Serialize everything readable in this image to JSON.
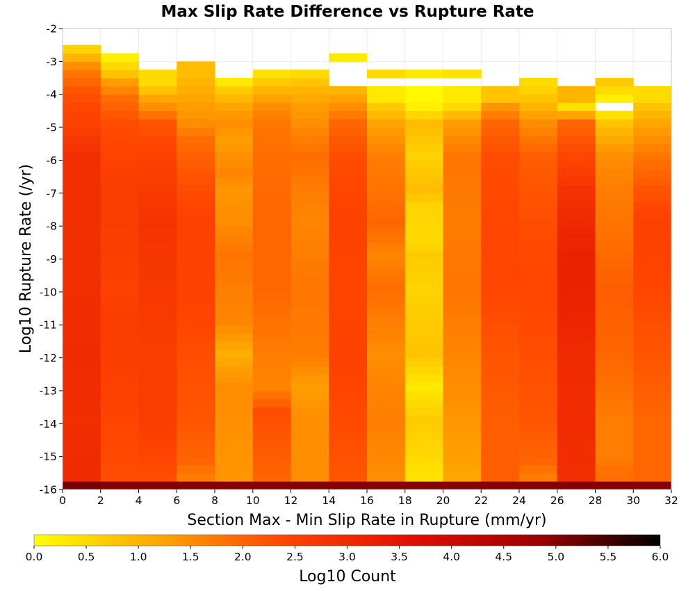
{
  "chart_data": {
    "type": "heatmap",
    "title": "Max Slip Rate Difference vs Rupture Rate",
    "xlabel": "Section Max - Min Slip Rate in Rupture (mm/yr)",
    "ylabel": "Log10 Rupture Rate (/yr)",
    "xlim": [
      0,
      32
    ],
    "ylim": [
      -16,
      -2
    ],
    "x_ticks": [
      "0",
      "2",
      "4",
      "6",
      "8",
      "10",
      "12",
      "14",
      "16",
      "18",
      "20",
      "22",
      "24",
      "26",
      "28",
      "30",
      "32"
    ],
    "y_ticks": [
      "-16",
      "-15",
      "-14",
      "-13",
      "-12",
      "-11",
      "-10",
      "-9",
      "-8",
      "-7",
      "-6",
      "-5",
      "-4",
      "-3",
      "-2"
    ],
    "x_bin_width": 2,
    "y_bin_height": 0.25,
    "grid": true,
    "colorbar": {
      "label": "Log10 Count",
      "range": [
        0.0,
        6.0
      ],
      "ticks": [
        "0.0",
        "0.5",
        "1.0",
        "1.5",
        "2.0",
        "2.5",
        "3.0",
        "3.5",
        "4.0",
        "4.5",
        "5.0",
        "5.5",
        "6.0"
      ],
      "stops": [
        "#ffff00",
        "#ffa500",
        "#ff4500",
        "#e01000",
        "#a00000",
        "#000000"
      ]
    },
    "columns": [
      {
        "x": [
          0,
          2
        ],
        "top": -2.75,
        "bins": [
          [
            -16.0,
            5.1
          ],
          [
            -15.75,
            3.0
          ],
          [
            -15.5,
            3.0
          ],
          [
            -14.0,
            2.9
          ],
          [
            -12.0,
            3.0
          ],
          [
            -10.0,
            2.9
          ],
          [
            -8.0,
            2.9
          ],
          [
            -6.0,
            2.9
          ],
          [
            -5.0,
            2.5
          ],
          [
            -4.5,
            2.4
          ],
          [
            -4.0,
            2.2
          ],
          [
            -3.5,
            1.8
          ],
          [
            -3.25,
            1.5
          ],
          [
            -3.0,
            1.0
          ],
          [
            -2.75,
            0.6
          ]
        ]
      },
      {
        "x": [
          2,
          4
        ],
        "top": -3.0,
        "bins": [
          [
            -16.0,
            5.0
          ],
          [
            -15.75,
            2.3
          ],
          [
            -13.0,
            2.5
          ],
          [
            -11.5,
            2.6
          ],
          [
            -10.0,
            2.5
          ],
          [
            -8.0,
            2.6
          ],
          [
            -7.0,
            2.6
          ],
          [
            -5.0,
            2.3
          ],
          [
            -4.25,
            1.9
          ],
          [
            -3.75,
            1.3
          ],
          [
            -3.5,
            0.8
          ],
          [
            -3.25,
            0.5
          ],
          [
            -3.0,
            0.2
          ]
        ]
      },
      {
        "x": [
          4,
          6
        ],
        "top": -3.5,
        "bins": [
          [
            -16.0,
            5.0
          ],
          [
            -15.75,
            2.3
          ],
          [
            -14.0,
            2.6
          ],
          [
            -12.0,
            2.6
          ],
          [
            -10.0,
            2.7
          ],
          [
            -8.0,
            2.8
          ],
          [
            -6.0,
            2.5
          ],
          [
            -5.0,
            2.2
          ],
          [
            -4.5,
            1.5
          ],
          [
            -4.25,
            1.2
          ],
          [
            -4.0,
            0.8
          ],
          [
            -3.75,
            0.5
          ]
        ]
      },
      {
        "x": [
          6,
          8
        ],
        "top": -3.25,
        "bins": [
          [
            -16.0,
            5.0
          ],
          [
            -15.75,
            1.7
          ],
          [
            -15.25,
            2.0
          ],
          [
            -14.0,
            2.2
          ],
          [
            -12.0,
            2.3
          ],
          [
            -10.0,
            2.5
          ],
          [
            -8.0,
            2.5
          ],
          [
            -6.5,
            2.2
          ],
          [
            -5.5,
            1.9
          ],
          [
            -5.0,
            1.5
          ],
          [
            -4.5,
            1.3
          ],
          [
            -4.0,
            1.1
          ],
          [
            -3.5,
            0.9
          ]
        ]
      },
      {
        "x": [
          8,
          10
        ],
        "top": -3.75,
        "bins": [
          [
            -16.0,
            5.0
          ],
          [
            -15.75,
            1.4
          ],
          [
            -13.0,
            1.5
          ],
          [
            -12.0,
            1.1
          ],
          [
            -11.0,
            1.6
          ],
          [
            -9.0,
            1.8
          ],
          [
            -8.0,
            1.5
          ],
          [
            -7.0,
            1.4
          ],
          [
            -6.5,
            1.6
          ],
          [
            -5.5,
            1.3
          ],
          [
            -5.0,
            1.5
          ],
          [
            -4.5,
            1.2
          ],
          [
            -4.0,
            0.7
          ],
          [
            -3.75,
            0.3
          ]
        ]
      },
      {
        "x": [
          10,
          12
        ],
        "top": -3.5,
        "bins": [
          [
            -16.0,
            5.0
          ],
          [
            -15.75,
            2.0
          ],
          [
            -13.75,
            2.3
          ],
          [
            -13.0,
            1.6
          ],
          [
            -12.0,
            1.7
          ],
          [
            -10.0,
            2.0
          ],
          [
            -8.0,
            2.0
          ],
          [
            -6.0,
            1.9
          ],
          [
            -5.0,
            1.8
          ],
          [
            -4.5,
            1.5
          ],
          [
            -4.0,
            1.0
          ],
          [
            -3.75,
            0.7
          ],
          [
            -3.5,
            0.4
          ]
        ]
      },
      {
        "x": [
          12,
          14
        ],
        "top": -3.5,
        "bins": [
          [
            -16.0,
            5.0
          ],
          [
            -15.75,
            1.5
          ],
          [
            -14.0,
            1.5
          ],
          [
            -13.0,
            1.3
          ],
          [
            -12.0,
            1.7
          ],
          [
            -10.0,
            1.8
          ],
          [
            -8.0,
            1.6
          ],
          [
            -7.0,
            1.7
          ],
          [
            -6.0,
            1.9
          ],
          [
            -5.0,
            1.5
          ],
          [
            -4.5,
            1.3
          ],
          [
            -4.0,
            1.0
          ],
          [
            -3.75,
            0.8
          ],
          [
            -3.5,
            0.5
          ]
        ]
      },
      {
        "x": [
          14,
          16
        ],
        "top": -4.0,
        "bins": [
          [
            -16.0,
            5.0
          ],
          [
            -15.75,
            2.2
          ],
          [
            -12.0,
            2.5
          ],
          [
            -10.0,
            2.4
          ],
          [
            -8.0,
            2.5
          ],
          [
            -6.0,
            2.3
          ],
          [
            -5.0,
            2.0
          ],
          [
            -4.5,
            1.5
          ],
          [
            -4.0,
            1.0
          ]
        ],
        "extra": [
          [
            -3.0,
            0.3
          ]
        ]
      },
      {
        "x": [
          16,
          18
        ],
        "top": -4.0,
        "bins": [
          [
            -16.0,
            5.0
          ],
          [
            -15.75,
            1.5
          ],
          [
            -14.0,
            1.7
          ],
          [
            -12.0,
            1.5
          ],
          [
            -10.0,
            1.9
          ],
          [
            -9.0,
            1.6
          ],
          [
            -8.0,
            2.0
          ],
          [
            -7.0,
            1.8
          ],
          [
            -6.0,
            1.7
          ],
          [
            -5.0,
            1.2
          ],
          [
            -4.5,
            0.7
          ],
          [
            -4.25,
            0.3
          ]
        ],
        "extra": [
          [
            -3.5,
            0.5
          ]
        ]
      },
      {
        "x": [
          18,
          20
        ],
        "top": -4.0,
        "bins": [
          [
            -16.0,
            5.0
          ],
          [
            -15.75,
            0.4
          ],
          [
            -14.0,
            0.7
          ],
          [
            -13.0,
            0.3
          ],
          [
            -12.0,
            0.8
          ],
          [
            -10.0,
            0.6
          ],
          [
            -9.0,
            0.7
          ],
          [
            -8.5,
            0.5
          ],
          [
            -7.5,
            0.6
          ],
          [
            -7.0,
            0.9
          ],
          [
            -6.0,
            0.6
          ],
          [
            -5.0,
            0.9
          ],
          [
            -4.5,
            0.2
          ],
          [
            -4.25,
            0.1
          ]
        ],
        "extra": [
          [
            -3.5,
            0.3
          ]
        ]
      },
      {
        "x": [
          20,
          22
        ],
        "top": -4.0,
        "bins": [
          [
            -16.0,
            5.0
          ],
          [
            -15.75,
            1.2
          ],
          [
            -14.0,
            1.4
          ],
          [
            -12.0,
            1.6
          ],
          [
            -10.0,
            1.8
          ],
          [
            -8.0,
            1.7
          ],
          [
            -6.0,
            1.8
          ],
          [
            -5.0,
            1.3
          ],
          [
            -4.5,
            0.5
          ],
          [
            -4.25,
            0.3
          ]
        ],
        "extra": [
          [
            -3.5,
            0.4
          ]
        ]
      },
      {
        "x": [
          22,
          24
        ],
        "top": -4.0,
        "bins": [
          [
            -16.0,
            5.0
          ],
          [
            -15.75,
            2.1
          ],
          [
            -14.0,
            2.1
          ],
          [
            -12.0,
            2.2
          ],
          [
            -10.0,
            2.4
          ],
          [
            -8.0,
            2.4
          ],
          [
            -6.0,
            2.3
          ],
          [
            -5.0,
            2.0
          ],
          [
            -4.5,
            1.4
          ],
          [
            -4.25,
            0.8
          ]
        ]
      },
      {
        "x": [
          24,
          26
        ],
        "top": -3.75,
        "bins": [
          [
            -16.0,
            5.0
          ],
          [
            -15.75,
            1.7
          ],
          [
            -15.25,
            2.0
          ],
          [
            -14.0,
            2.2
          ],
          [
            -12.0,
            2.3
          ],
          [
            -10.0,
            2.4
          ],
          [
            -8.0,
            2.3
          ],
          [
            -6.0,
            2.1
          ],
          [
            -5.0,
            1.5
          ],
          [
            -4.5,
            1.0
          ],
          [
            -4.0,
            0.6
          ],
          [
            -3.75,
            0.5
          ]
        ]
      },
      {
        "x": [
          26,
          28
        ],
        "top": -4.0,
        "bins": [
          [
            -16.0,
            5.0
          ],
          [
            -15.75,
            2.9
          ],
          [
            -12.0,
            3.0
          ],
          [
            -10.0,
            3.2
          ],
          [
            -9.0,
            3.2
          ],
          [
            -8.0,
            3.0
          ],
          [
            -7.0,
            2.8
          ],
          [
            -6.0,
            2.4
          ],
          [
            -5.0,
            2.0
          ],
          [
            -4.75,
            1.2
          ],
          [
            -4.5,
            0.4
          ],
          [
            -4.25,
            1.0
          ]
        ]
      },
      {
        "x": [
          28,
          30
        ],
        "top": -3.75,
        "bins": [
          [
            -16.0,
            5.0
          ],
          [
            -15.75,
            1.9
          ],
          [
            -15.0,
            1.7
          ],
          [
            -14.0,
            1.7
          ],
          [
            -12.0,
            2.0
          ],
          [
            -10.0,
            2.1
          ],
          [
            -8.0,
            1.8
          ],
          [
            -7.0,
            1.7
          ],
          [
            -6.0,
            1.5
          ],
          [
            -5.0,
            0.8
          ],
          [
            -4.75,
            0.4
          ],
          [
            -4.5,
            null
          ],
          [
            -4.25,
            0.2
          ],
          [
            -4.0,
            0.5
          ],
          [
            -3.75,
            0.7
          ]
        ]
      },
      {
        "x": [
          30,
          32
        ],
        "top": -4.0,
        "bins": [
          [
            -16.0,
            5.0
          ],
          [
            -15.75,
            2.0
          ],
          [
            -14.0,
            2.0
          ],
          [
            -12.0,
            2.2
          ],
          [
            -10.0,
            2.4
          ],
          [
            -8.0,
            2.5
          ],
          [
            -7.0,
            2.2
          ],
          [
            -6.0,
            1.8
          ],
          [
            -5.0,
            1.2
          ],
          [
            -4.5,
            0.8
          ],
          [
            -4.25,
            0.5
          ]
        ]
      }
    ]
  }
}
